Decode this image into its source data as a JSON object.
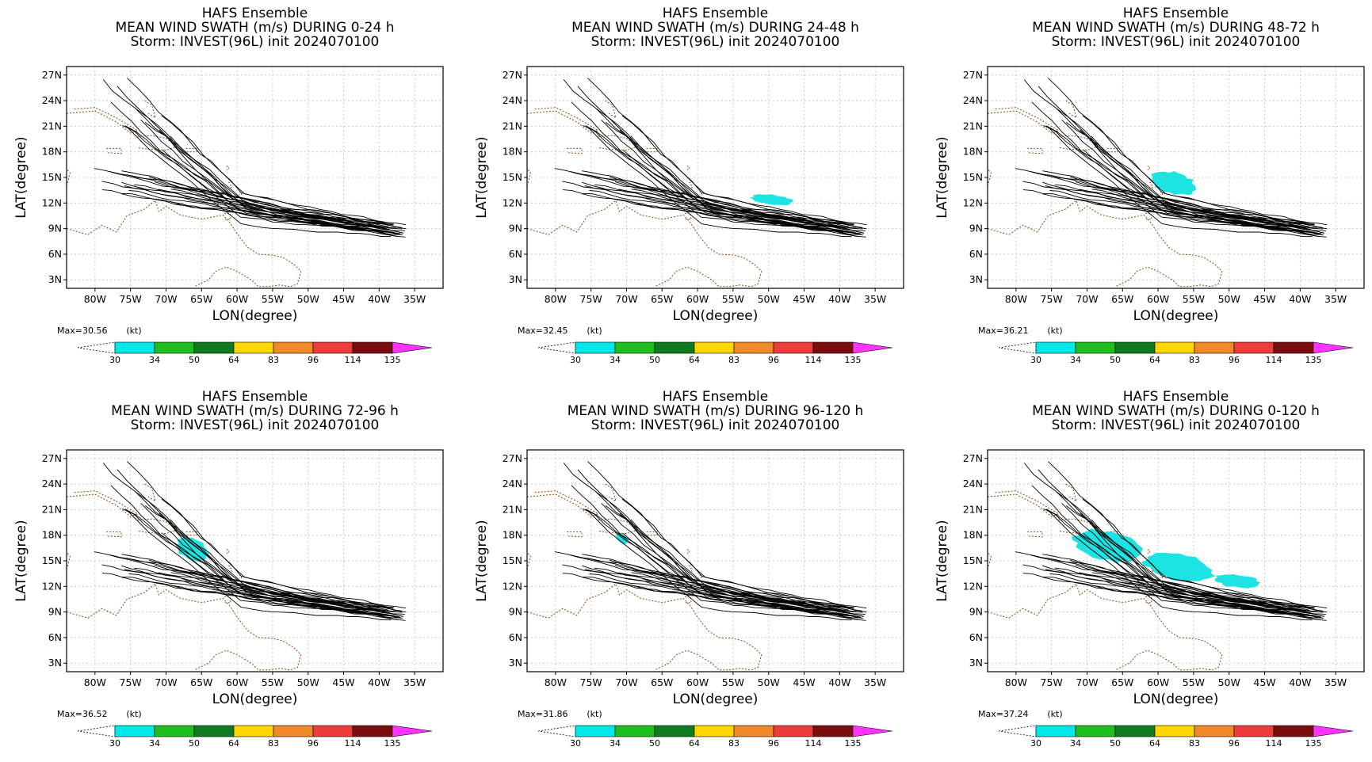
{
  "figure": {
    "model": "HAFS Ensemble",
    "storm_line": "Storm: INVEST(96L) init 2024070100"
  },
  "colorbar": {
    "unit_label": "(kt)",
    "levels": [
      "30",
      "34",
      "50",
      "64",
      "83",
      "96",
      "114",
      "135"
    ],
    "colors": [
      "#00e8e8",
      "#1fbe1f",
      "#0f7a1f",
      "#ffd700",
      "#f08a28",
      "#ec3c3c",
      "#7a0e0e",
      "#ff33ff"
    ]
  },
  "colors": {
    "coastline": "#8b4513",
    "track": "#000000",
    "swath": "#1ee3e3",
    "grid": "#bdbdbd"
  },
  "chart_data": [
    {
      "type": "map",
      "title": "MEAN WIND SWATH (m/s) DURING  0-24 h",
      "max_label": "Max=30.56",
      "xlabel": "LON(degree)",
      "ylabel": "LAT(degree)",
      "xlim": [
        -84,
        -31
      ],
      "ylim": [
        2,
        28
      ],
      "xticks": [
        "80W",
        "75W",
        "70W",
        "65W",
        "60W",
        "55W",
        "50W",
        "45W",
        "40W",
        "35W"
      ],
      "yticks": [
        "27N",
        "24N",
        "21N",
        "18N",
        "15N",
        "12N",
        "9N",
        "6N",
        "3N"
      ],
      "grid": true,
      "track_count": 31,
      "swath_regions": []
    },
    {
      "type": "map",
      "title": "MEAN WIND SWATH (m/s) DURING 24-48 h",
      "max_label": "Max=32.45",
      "xlabel": "LON(degree)",
      "ylabel": "LAT(degree)",
      "xlim": [
        -84,
        -31
      ],
      "ylim": [
        2,
        28
      ],
      "xticks": [
        "80W",
        "75W",
        "70W",
        "65W",
        "60W",
        "55W",
        "50W",
        "45W",
        "40W",
        "35W"
      ],
      "yticks": [
        "27N",
        "24N",
        "21N",
        "18N",
        "15N",
        "12N",
        "9N",
        "6N",
        "3N"
      ],
      "grid": true,
      "track_count": 31,
      "swath_regions": [
        {
          "lon": [
            -52.5,
            -46.5
          ],
          "lat": [
            11.8,
            13.0
          ]
        }
      ]
    },
    {
      "type": "map",
      "title": "MEAN WIND SWATH (m/s) DURING 48-72 h",
      "max_label": "Max=36.21",
      "xlabel": "LON(degree)",
      "ylabel": "LAT(degree)",
      "xlim": [
        -84,
        -31
      ],
      "ylim": [
        2,
        28
      ],
      "xticks": [
        "80W",
        "75W",
        "70W",
        "65W",
        "60W",
        "55W",
        "50W",
        "45W",
        "40W",
        "35W"
      ],
      "yticks": [
        "27N",
        "24N",
        "21N",
        "18N",
        "15N",
        "12N",
        "9N",
        "6N",
        "3N"
      ],
      "grid": true,
      "track_count": 31,
      "swath_regions": [
        {
          "lon": [
            -61.0,
            -54.5
          ],
          "lat": [
            13.0,
            15.6
          ]
        }
      ]
    },
    {
      "type": "map",
      "title": "MEAN WIND SWATH (m/s) DURING 72-96 h",
      "max_label": "Max=36.52",
      "xlabel": "LON(degree)",
      "ylabel": "LAT(degree)",
      "xlim": [
        -84,
        -31
      ],
      "ylim": [
        2,
        28
      ],
      "xticks": [
        "80W",
        "75W",
        "70W",
        "65W",
        "60W",
        "55W",
        "50W",
        "45W",
        "40W",
        "35W"
      ],
      "yticks": [
        "27N",
        "24N",
        "21N",
        "18N",
        "15N",
        "12N",
        "9N",
        "6N",
        "3N"
      ],
      "grid": true,
      "track_count": 31,
      "swath_regions": [
        {
          "lon": [
            -68.5,
            -64.0
          ],
          "lat": [
            15.0,
            17.6
          ]
        }
      ]
    },
    {
      "type": "map",
      "title": "MEAN WIND SWATH (m/s) DURING 96-120 h",
      "max_label": "Max=31.86",
      "xlabel": "LON(degree)",
      "ylabel": "LAT(degree)",
      "xlim": [
        -84,
        -31
      ],
      "ylim": [
        2,
        28
      ],
      "xticks": [
        "80W",
        "75W",
        "70W",
        "65W",
        "60W",
        "55W",
        "50W",
        "45W",
        "40W",
        "35W"
      ],
      "yticks": [
        "27N",
        "24N",
        "21N",
        "18N",
        "15N",
        "12N",
        "9N",
        "6N",
        "3N"
      ],
      "grid": true,
      "track_count": 31,
      "swath_regions": [
        {
          "lon": [
            -71.5,
            -69.8
          ],
          "lat": [
            17.0,
            18.2
          ]
        }
      ]
    },
    {
      "type": "map",
      "title": "MEAN WIND SWATH (m/s) DURING 0-120 h",
      "max_label": "Max=37.24",
      "xlabel": "LON(degree)",
      "ylabel": "LAT(degree)",
      "xlim": [
        -84,
        -31
      ],
      "ylim": [
        2,
        28
      ],
      "xticks": [
        "80W",
        "75W",
        "70W",
        "65W",
        "60W",
        "55W",
        "50W",
        "45W",
        "40W",
        "35W"
      ],
      "yticks": [
        "27N",
        "24N",
        "21N",
        "18N",
        "15N",
        "12N",
        "9N",
        "6N",
        "3N"
      ],
      "grid": true,
      "track_count": 31,
      "swath_regions": [
        {
          "lon": [
            -72.0,
            -62.0
          ],
          "lat": [
            15.0,
            18.5
          ]
        },
        {
          "lon": [
            -62.0,
            -52.0
          ],
          "lat": [
            12.6,
            15.8
          ]
        },
        {
          "lon": [
            -52.0,
            -45.5
          ],
          "lat": [
            11.8,
            13.4
          ]
        }
      ]
    }
  ]
}
